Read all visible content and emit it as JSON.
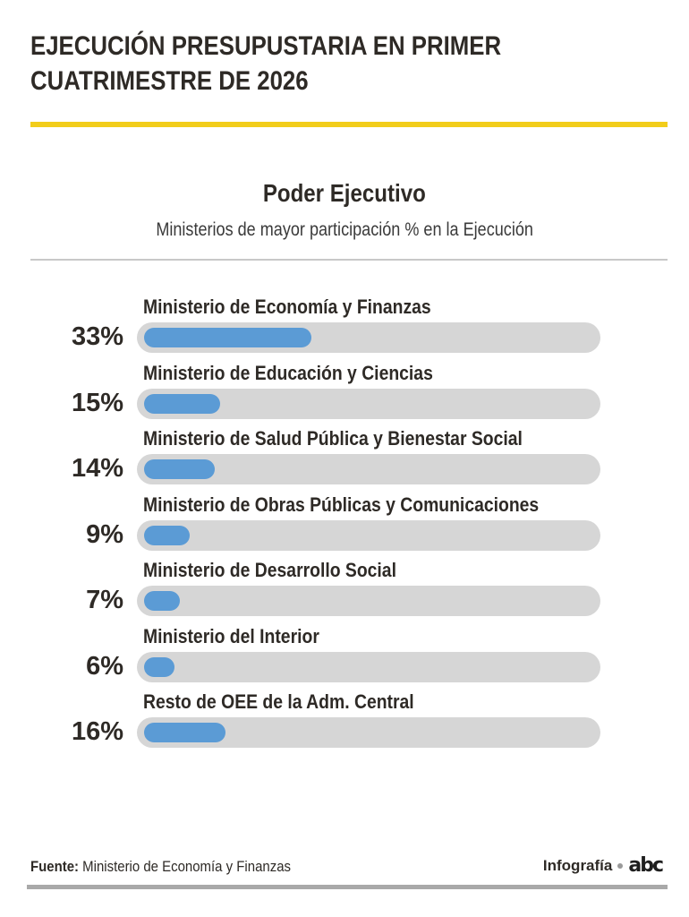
{
  "header": {
    "title_line1": "EJECUCIÓN PRESUPUSTARIA EN PRIMER",
    "title_line2": "CUATRIMESTRE DE 2026",
    "accent_color": "#f2cd1a"
  },
  "chart_data": {
    "type": "bar",
    "orientation": "horizontal",
    "title": "Poder Ejecutivo",
    "subtitle": "Ministerios de mayor participación % en la Ejecución",
    "value_unit": "%",
    "xlim": [
      0,
      100
    ],
    "categories": [
      "Ministerio de Economía y Finanzas",
      "Ministerio de Educación y Ciencias",
      "Ministerio de Salud Pública y Bienestar Social",
      "Ministerio de Obras Públicas y Comunicaciones",
      "Ministerio de Desarrollo Social",
      "Ministerio del Interior",
      "Resto de OEE de la Adm. Central"
    ],
    "values": [
      33,
      15,
      14,
      9,
      7,
      6,
      16
    ],
    "value_labels": [
      "33%",
      "15%",
      "14%",
      "9%",
      "7%",
      "6%",
      "16%"
    ],
    "bar_color": "#5b9bd5",
    "track_color": "#d6d6d6"
  },
  "footer": {
    "source_label": "Fuente:",
    "source_text": " Ministerio de Economía y Finanzas",
    "credit_label": "Infografía",
    "logo_text": "abc"
  }
}
